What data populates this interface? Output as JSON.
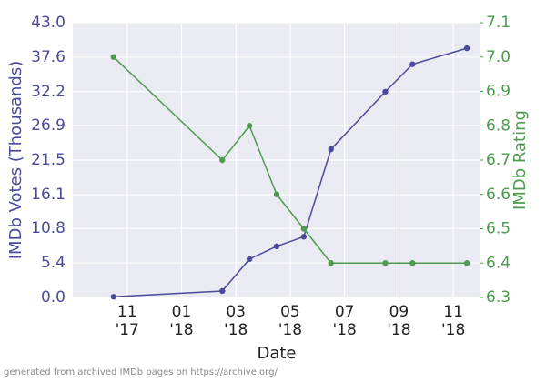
{
  "chart_data": {
    "type": "line",
    "xlabel": "Date",
    "ylabel": "IMDb Votes (Thousands)",
    "y2label": "IMDb Rating",
    "footnote": "generated from archived IMDb pages on https://archive.org/",
    "x": [
      "2017-10",
      "2018-02",
      "2018-03",
      "2018-04",
      "2018-05",
      "2018-06",
      "2018-08",
      "2018-09",
      "2018-11"
    ],
    "series": [
      {
        "name": "IMDb Votes (Thousands)",
        "color": "#4b4b9b",
        "values": [
          0.1,
          1.0,
          6.0,
          8.0,
          9.5,
          23.2,
          32.2,
          36.5,
          39.0
        ]
      },
      {
        "name": "IMDb Rating",
        "color": "#4e9a4e",
        "axis": "y2",
        "values": [
          7.0,
          6.7,
          6.8,
          6.6,
          6.5,
          6.4,
          6.4,
          6.4,
          6.4
        ]
      }
    ],
    "xlim": [
      "2017-09",
      "2018-12"
    ],
    "xticks": [
      {
        "value": "2017-11",
        "label": "11\n'17"
      },
      {
        "value": "2018-01",
        "label": "01\n'18"
      },
      {
        "value": "2018-03",
        "label": "03\n'18"
      },
      {
        "value": "2018-05",
        "label": "05\n'18"
      },
      {
        "value": "2018-07",
        "label": "07\n'18"
      },
      {
        "value": "2018-09",
        "label": "09\n'18"
      },
      {
        "value": "2018-11",
        "label": "11\n'18"
      }
    ],
    "ylim": [
      0,
      43
    ],
    "yticks": [
      {
        "value": 0,
        "label": "0.0"
      },
      5.4,
      10.8,
      16.1,
      21.5,
      26.9,
      32.2,
      37.6,
      {
        "value": 43,
        "label": "43.0"
      }
    ],
    "y2lim": [
      6.3,
      7.1
    ],
    "y2ticks": [
      6.3,
      6.4,
      6.5,
      6.6,
      6.7,
      6.8,
      6.9,
      {
        "value": 7,
        "label": "7.0"
      },
      7.1
    ],
    "grid": true
  }
}
